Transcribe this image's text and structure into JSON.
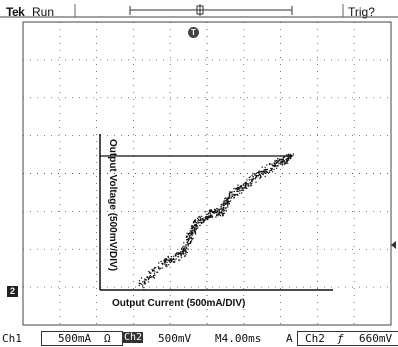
{
  "header": {
    "brand": "Tek",
    "status": "Run",
    "trigger_status": "Trig?"
  },
  "markers": {
    "ground_marker": "2",
    "trigger_marker": "T"
  },
  "plot": {
    "y_label": "Output Voltage (500mV/DIV)",
    "x_label": "Output Current (500mA/DIV)"
  },
  "footer": {
    "ch1_label": "Ch1",
    "ch1_scale": "500mA",
    "ch1_unit": "Ω",
    "ch2_label": "Ch2",
    "ch2_scale": "500mV",
    "timebase": "M4.00ms",
    "trigger_mode": "A",
    "trigger_source": "Ch2",
    "trigger_slope": "ƒ",
    "trigger_level": "660mV"
  },
  "colors": {
    "grid": "#555555",
    "trace": "#111111",
    "background": "#ffffff"
  }
}
